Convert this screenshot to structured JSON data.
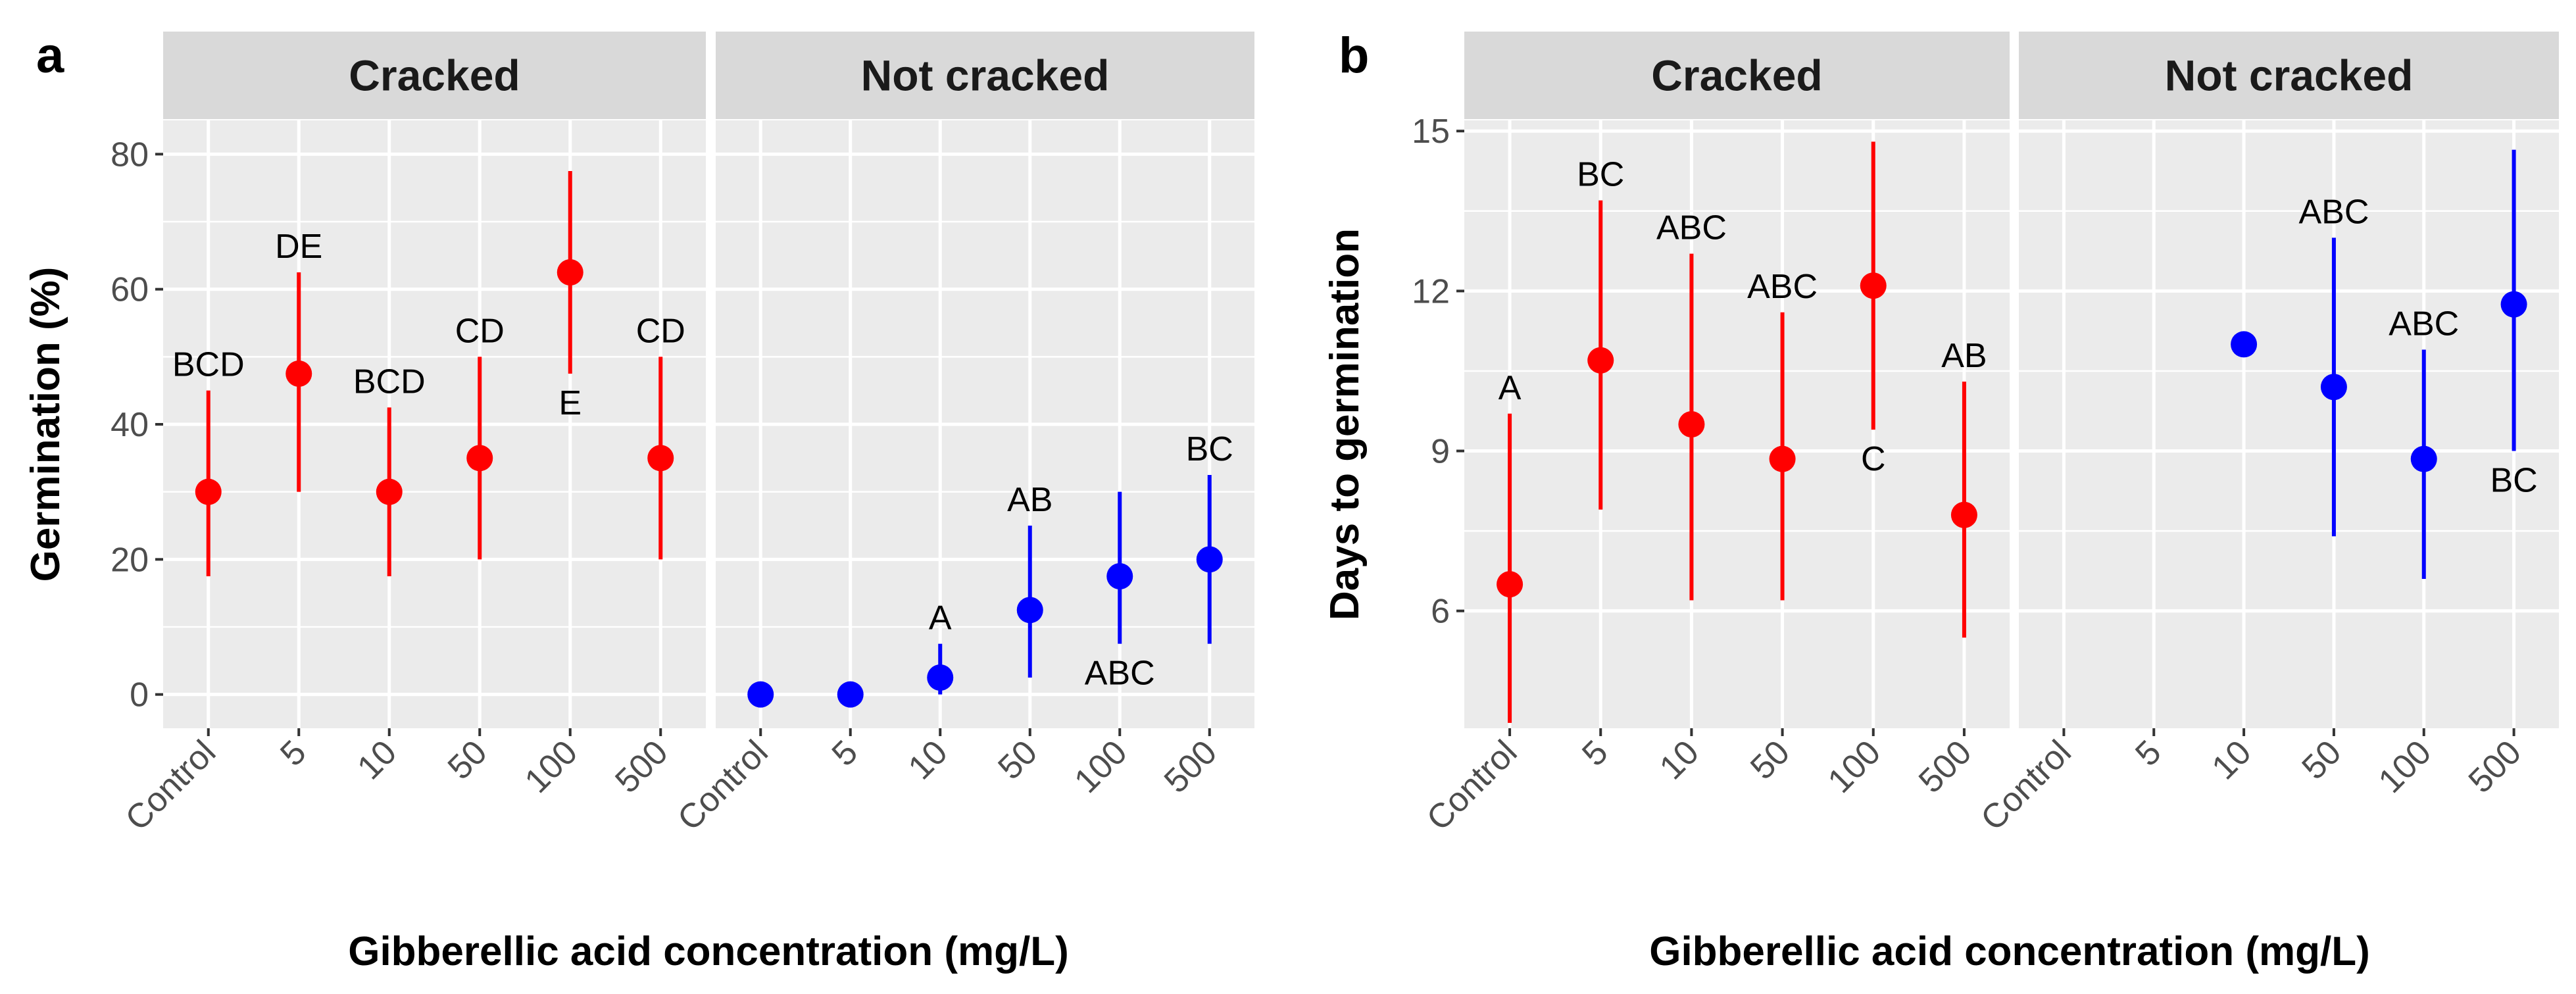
{
  "colors": {
    "cracked": "#ff0000",
    "not_cracked": "#0000ff",
    "panel_bg": "#ebebeb",
    "strip_bg": "#d9d9d9",
    "grid": "#ffffff"
  },
  "chart_data": [
    {
      "panel": "a",
      "type": "pointrange",
      "xlabel": "Gibberellic acid concentration (mg/L)",
      "ylabel": "Germination (%)",
      "categories": [
        "Control",
        "5",
        "10",
        "50",
        "100",
        "500"
      ],
      "ylim": [
        -5,
        85
      ],
      "yticks": [
        0,
        20,
        40,
        60,
        80
      ],
      "facets": [
        {
          "title": "Cracked",
          "color": "#ff0000",
          "points": [
            {
              "x": "Control",
              "y": 30,
              "lo": 17.5,
              "hi": 45,
              "label": "BCD",
              "label_pos": "above"
            },
            {
              "x": "5",
              "y": 47.5,
              "lo": 30,
              "hi": 62.5,
              "label": "DE",
              "label_pos": "above"
            },
            {
              "x": "10",
              "y": 30,
              "lo": 17.5,
              "hi": 42.5,
              "label": "BCD",
              "label_pos": "above"
            },
            {
              "x": "50",
              "y": 35,
              "lo": 20,
              "hi": 50,
              "label": "CD",
              "label_pos": "above"
            },
            {
              "x": "100",
              "y": 62.5,
              "lo": 47.5,
              "hi": 77.5,
              "label": "E",
              "label_pos": "below"
            },
            {
              "x": "500",
              "y": 35,
              "lo": 20,
              "hi": 50,
              "label": "CD",
              "label_pos": "above"
            }
          ]
        },
        {
          "title": "Not cracked",
          "color": "#0000ff",
          "points": [
            {
              "x": "Control",
              "y": 0
            },
            {
              "x": "5",
              "y": 0
            },
            {
              "x": "10",
              "y": 2.5,
              "lo": 0,
              "hi": 7.5,
              "label": "A",
              "label_pos": "above"
            },
            {
              "x": "50",
              "y": 12.5,
              "lo": 2.5,
              "hi": 25,
              "label": "AB",
              "label_pos": "above"
            },
            {
              "x": "100",
              "y": 17.5,
              "lo": 7.5,
              "hi": 30,
              "label": "ABC",
              "label_pos": "below"
            },
            {
              "x": "500",
              "y": 20,
              "lo": 7.5,
              "hi": 32.5,
              "label": "BC",
              "label_pos": "above"
            }
          ]
        }
      ]
    },
    {
      "panel": "b",
      "type": "pointrange",
      "xlabel": "Gibberellic acid concentration (mg/L)",
      "ylabel": "Days to germination",
      "categories": [
        "Control",
        "5",
        "10",
        "50",
        "100",
        "500"
      ],
      "ylim": [
        3.8,
        15.2
      ],
      "yticks": [
        6,
        9,
        12,
        15
      ],
      "facets": [
        {
          "title": "Cracked",
          "color": "#ff0000",
          "points": [
            {
              "x": "Control",
              "y": 6.5,
              "lo": 3.9,
              "hi": 9.7,
              "label": "A",
              "label_pos": "above"
            },
            {
              "x": "5",
              "y": 10.7,
              "lo": 7.9,
              "hi": 13.7,
              "label": "BC",
              "label_pos": "above"
            },
            {
              "x": "10",
              "y": 9.5,
              "lo": 6.2,
              "hi": 12.7,
              "label": "ABC",
              "label_pos": "above"
            },
            {
              "x": "50",
              "y": 8.85,
              "lo": 6.2,
              "hi": 11.6,
              "label": "ABC",
              "label_pos": "above"
            },
            {
              "x": "100",
              "y": 12.1,
              "lo": 9.4,
              "hi": 14.8,
              "label": "C",
              "label_pos": "below"
            },
            {
              "x": "500",
              "y": 7.8,
              "lo": 5.5,
              "hi": 10.3,
              "label": "AB",
              "label_pos": "above"
            }
          ]
        },
        {
          "title": "Not cracked",
          "color": "#0000ff",
          "points": [
            {
              "x": "10",
              "y": 11
            },
            {
              "x": "50",
              "y": 10.2,
              "lo": 7.4,
              "hi": 13,
              "label": "ABC",
              "label_pos": "above"
            },
            {
              "x": "100",
              "y": 8.85,
              "lo": 6.6,
              "hi": 10.9,
              "label": "ABC",
              "label_pos": "above"
            },
            {
              "x": "500",
              "y": 11.75,
              "lo": 9,
              "hi": 14.65,
              "label": "BC",
              "label_pos": "below"
            }
          ]
        }
      ]
    }
  ]
}
